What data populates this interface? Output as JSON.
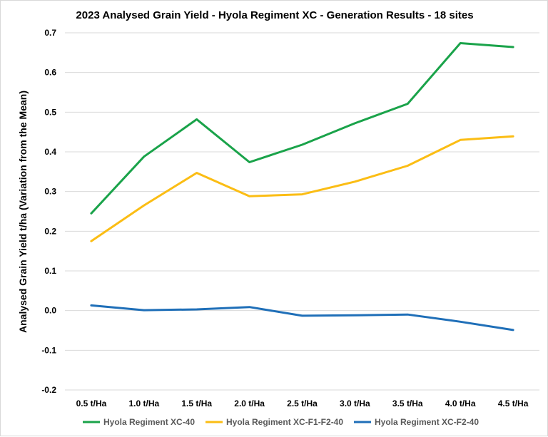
{
  "chart_data": {
    "type": "line",
    "title": "2023 Analysed Grain Yield - Hyola Regiment XC - Generation Results - 18 sites",
    "xlabel": "",
    "ylabel": "Analysed Grain Yield t/ha (Variation from the Mean)",
    "categories": [
      "0.5 t/Ha",
      "1.0 t/Ha",
      "1.5 t/Ha",
      "2.0 t/Ha",
      "2.5 t/Ha",
      "3.0 t/Ha",
      "3.5 t/Ha",
      "4.0 t/Ha",
      "4.5 t/Ha"
    ],
    "ylim": [
      -0.2,
      0.7
    ],
    "yticks": [
      "-0.2",
      "-0.1",
      "0.0",
      "0.1",
      "0.2",
      "0.3",
      "0.4",
      "0.5",
      "0.6",
      "0.7"
    ],
    "grid": true,
    "legend_position": "bottom",
    "series": [
      {
        "name": "Hyola Regiment XC-40",
        "color": "#1aa34a",
        "values": [
          0.245,
          0.388,
          0.482,
          0.374,
          0.418,
          0.472,
          0.521,
          0.674,
          0.664
        ]
      },
      {
        "name": "Hyola Regiment XC-F1-F2-40",
        "color": "#fbbd14",
        "values": [
          0.175,
          0.265,
          0.347,
          0.288,
          0.293,
          0.325,
          0.365,
          0.43,
          0.439
        ]
      },
      {
        "name": "Hyola Regiment XC-F2-40",
        "color": "#1f6fb8",
        "values": [
          0.013,
          0.001,
          0.003,
          0.009,
          -0.013,
          -0.012,
          -0.01,
          -0.028,
          -0.049
        ]
      }
    ]
  }
}
